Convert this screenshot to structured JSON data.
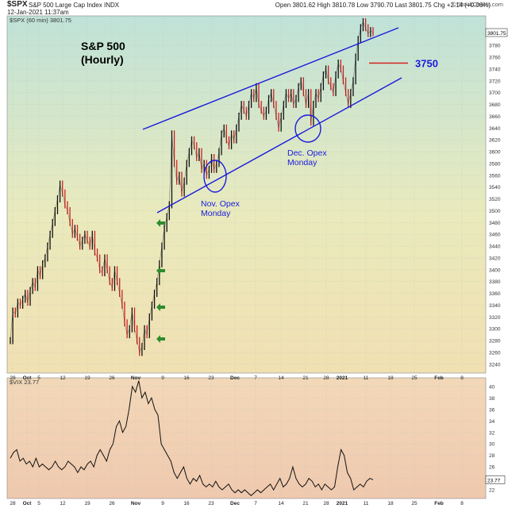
{
  "header": {
    "symbol": "$SPX",
    "description": "S&P 500 Large Cap Index INDX",
    "date": "12-Jan-2021 11:37am",
    "quote": "Open 3801.62  High 3810.78  Low 3790.70  Last 3801.75  Chg +2.14 (+0.06%)",
    "upper_ticker_label": "$SPX (60 min) 3801.75",
    "watermark": "© StockCharts.com"
  },
  "annotations": {
    "title": "S&P 500",
    "subtitle": "(Hourly)",
    "level_label": "3750",
    "nov_label_1": "Nov. Opex",
    "nov_label_2": "Monday",
    "dec_label_1": "Dec. Opex",
    "dec_label_2": "Monday"
  },
  "colors": {
    "channel": "#1a1adc",
    "ellipse": "#1a1adc",
    "level_line": "#d42020",
    "level_text": "#1a1adc",
    "arrows": "#2e8b2e",
    "up_bar": "#111111",
    "down_bar": "#cc2222",
    "vix_line": "#111111"
  },
  "chart_data": [
    {
      "type": "line",
      "title": "S&P 500",
      "ticker_label": "$SPX (60 min) 3801.75",
      "y_ticks": [
        3240,
        3260,
        3280,
        3300,
        3320,
        3340,
        3360,
        3380,
        3400,
        3420,
        3440,
        3460,
        3480,
        3500,
        3520,
        3540,
        3560,
        3580,
        3600,
        3620,
        3640,
        3660,
        3680,
        3700,
        3720,
        3740,
        3760,
        3780,
        3800
      ],
      "ylim": [
        3225,
        3830
      ],
      "last_value_label": "3801.75",
      "x_tick_labels": [
        "28",
        "Oct",
        "5",
        "12",
        "19",
        "26",
        "Nov",
        "9",
        "16",
        "23",
        "Dec",
        "7",
        "14",
        "21",
        "28",
        "2021",
        "11",
        "18",
        "25",
        "Feb",
        "8"
      ],
      "series": [
        {
          "values": [
            3280,
            3330,
            3325,
            3345,
            3340,
            3350,
            3360,
            3345,
            3365,
            3380,
            3370,
            3400,
            3390,
            3410,
            3420,
            3440,
            3460,
            3480,
            3500,
            3520,
            3545,
            3530,
            3510,
            3500,
            3480,
            3460,
            3470,
            3455,
            3440,
            3450,
            3460,
            3450,
            3440,
            3460,
            3430,
            3420,
            3400,
            3395,
            3420,
            3400,
            3380,
            3370,
            3400,
            3380,
            3360,
            3340,
            3310,
            3290,
            3300,
            3330,
            3300,
            3280,
            3260,
            3270,
            3300,
            3290,
            3320,
            3340,
            3360,
            3380,
            3410,
            3440,
            3470,
            3490,
            3510,
            3630,
            3580,
            3550,
            3560,
            3530,
            3550,
            3580,
            3600,
            3620,
            3610,
            3590,
            3600,
            3570,
            3580,
            3560,
            3570,
            3590,
            3570,
            3580,
            3600,
            3630,
            3640,
            3620,
            3610,
            3630,
            3620,
            3640,
            3660,
            3680,
            3670,
            3660,
            3680,
            3700,
            3690,
            3710,
            3680,
            3670,
            3660,
            3670,
            3690,
            3700,
            3680,
            3660,
            3640,
            3660,
            3680,
            3700,
            3690,
            3700,
            3680,
            3690,
            3710,
            3720,
            3700,
            3680,
            3700,
            3650,
            3680,
            3700,
            3690,
            3710,
            3730,
            3740,
            3720,
            3710,
            3700,
            3730,
            3750,
            3740,
            3720,
            3700,
            3680,
            3700,
            3720,
            3760,
            3790,
            3810,
            3820,
            3810,
            3800,
            3805,
            3801.75
          ]
        }
      ],
      "annotations": {
        "level": 3750,
        "level_label": "3750",
        "arrows_count": 4
      }
    },
    {
      "type": "line",
      "ticker_label": "$VIX 23.77",
      "y_ticks": [
        22,
        24,
        26,
        28,
        30,
        32,
        34,
        36,
        38,
        40
      ],
      "ylim": [
        20.5,
        41.5
      ],
      "last_value_label": "23.77",
      "x_tick_labels": [
        "28",
        "Oct",
        "5",
        "12",
        "19",
        "26",
        "Nov",
        "9",
        "16",
        "23",
        "Dec",
        "7",
        "14",
        "21",
        "28",
        "2021",
        "11",
        "18",
        "25",
        "Feb",
        "8"
      ],
      "series": [
        {
          "values": [
            27.5,
            28.5,
            29,
            27,
            27.5,
            26.5,
            27,
            26,
            27.5,
            26,
            26.5,
            26,
            25.5,
            26,
            27,
            26,
            25.5,
            26,
            27,
            26.5,
            26,
            25,
            26,
            25.5,
            26.5,
            27,
            26,
            28,
            29,
            28,
            27,
            29,
            30,
            33,
            34,
            32,
            33,
            36,
            40,
            39,
            41,
            38,
            39,
            37,
            38,
            36,
            35,
            30,
            29,
            28,
            27,
            25,
            24,
            25,
            26,
            24,
            23,
            24,
            23.5,
            24.5,
            23,
            22.5,
            23,
            22.5,
            23.5,
            22.5,
            22,
            22.5,
            23,
            22,
            21.5,
            22,
            21.5,
            22,
            21.5,
            21,
            21.5,
            22,
            21.5,
            22,
            22.5,
            23,
            22,
            23,
            24,
            22.5,
            23,
            24,
            26,
            24,
            23,
            22.5,
            23,
            24,
            23.5,
            22.5,
            23,
            22,
            23,
            22.5,
            22,
            22.5,
            26,
            29,
            28,
            25,
            24,
            22,
            22.5,
            23,
            22.5,
            23.5,
            24,
            23.77
          ]
        }
      ]
    }
  ]
}
